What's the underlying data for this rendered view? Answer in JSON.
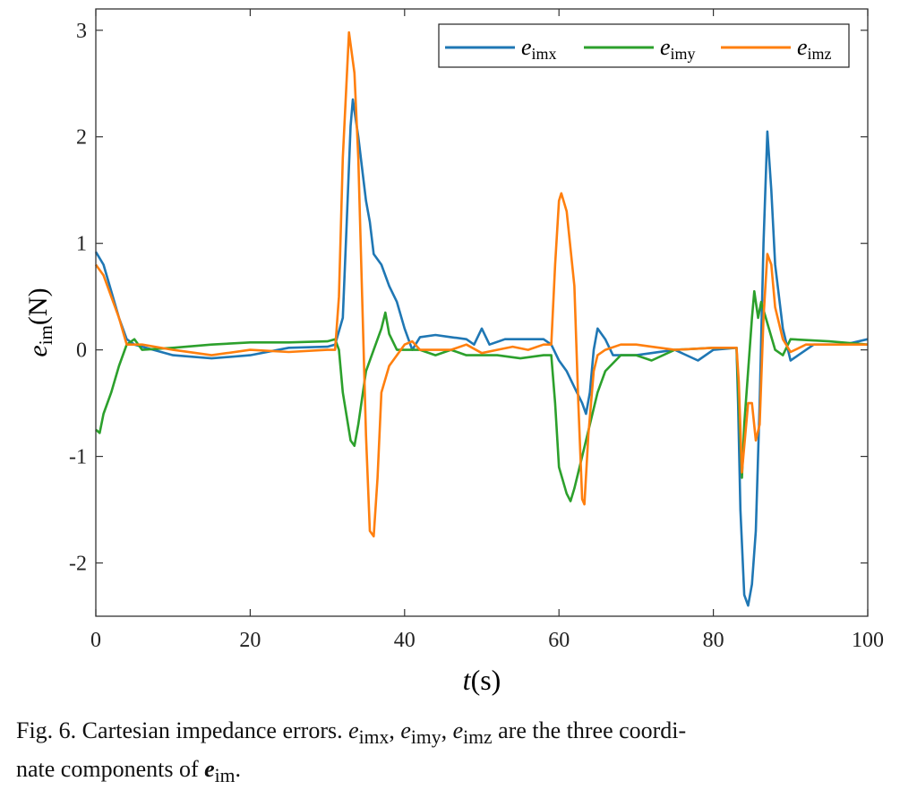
{
  "chart_data": {
    "type": "line",
    "title": "",
    "xlabel": "t(s)",
    "ylabel": "e_im(N)",
    "xlim": [
      0,
      100
    ],
    "ylim": [
      -2.5,
      3.2
    ],
    "xticks": [
      0,
      20,
      40,
      60,
      80,
      100
    ],
    "yticks": [
      -2,
      -1,
      0,
      1,
      2,
      3
    ],
    "ytick_labels": [
      "-2",
      "-1",
      "0",
      "1",
      "2",
      "3"
    ],
    "grid": false,
    "legend_position": "top-right",
    "series": [
      {
        "name": "e_imx",
        "color": "#1f77b4",
        "points": [
          [
            0,
            0.92
          ],
          [
            1,
            0.8
          ],
          [
            3,
            0.3
          ],
          [
            4,
            0.1
          ],
          [
            5,
            0.05
          ],
          [
            10,
            -0.05
          ],
          [
            15,
            -0.08
          ],
          [
            20,
            -0.05
          ],
          [
            25,
            0.02
          ],
          [
            30,
            0.03
          ],
          [
            31,
            0.05
          ],
          [
            32,
            0.3
          ],
          [
            32.5,
            1.2
          ],
          [
            33,
            2.1
          ],
          [
            33.3,
            2.35
          ],
          [
            34,
            2.0
          ],
          [
            35,
            1.4
          ],
          [
            35.5,
            1.2
          ],
          [
            36,
            0.9
          ],
          [
            37,
            0.8
          ],
          [
            38,
            0.6
          ],
          [
            39,
            0.45
          ],
          [
            40,
            0.2
          ],
          [
            41,
            0.0
          ],
          [
            42,
            0.12
          ],
          [
            44,
            0.14
          ],
          [
            46,
            0.12
          ],
          [
            48,
            0.1
          ],
          [
            49,
            0.05
          ],
          [
            50,
            0.2
          ],
          [
            51,
            0.05
          ],
          [
            53,
            0.1
          ],
          [
            55,
            0.1
          ],
          [
            57,
            0.1
          ],
          [
            58,
            0.1
          ],
          [
            59,
            0.05
          ],
          [
            60,
            -0.1
          ],
          [
            61,
            -0.2
          ],
          [
            62,
            -0.35
          ],
          [
            63,
            -0.5
          ],
          [
            63.5,
            -0.6
          ],
          [
            64,
            -0.4
          ],
          [
            64.5,
            0.0
          ],
          [
            65,
            0.2
          ],
          [
            66,
            0.1
          ],
          [
            67,
            -0.05
          ],
          [
            70,
            -0.05
          ],
          [
            75,
            0.0
          ],
          [
            78,
            -0.1
          ],
          [
            80,
            0.0
          ],
          [
            83,
            0.02
          ],
          [
            83.2,
            -0.5
          ],
          [
            83.5,
            -1.5
          ],
          [
            84,
            -2.3
          ],
          [
            84.5,
            -2.4
          ],
          [
            85,
            -2.2
          ],
          [
            85.5,
            -1.7
          ],
          [
            86,
            -0.5
          ],
          [
            86.5,
            1.0
          ],
          [
            87,
            2.05
          ],
          [
            87.5,
            1.5
          ],
          [
            88,
            0.8
          ],
          [
            89,
            0.2
          ],
          [
            90,
            -0.1
          ],
          [
            91,
            -0.05
          ],
          [
            93,
            0.05
          ],
          [
            95,
            0.05
          ],
          [
            97,
            0.05
          ],
          [
            100,
            0.1
          ]
        ]
      },
      {
        "name": "e_imy",
        "color": "#2ca02c",
        "points": [
          [
            0,
            -0.75
          ],
          [
            0.5,
            -0.78
          ],
          [
            1,
            -0.6
          ],
          [
            2,
            -0.4
          ],
          [
            3,
            -0.15
          ],
          [
            4,
            0.05
          ],
          [
            5,
            0.1
          ],
          [
            6,
            0.0
          ],
          [
            10,
            0.02
          ],
          [
            15,
            0.05
          ],
          [
            20,
            0.07
          ],
          [
            25,
            0.07
          ],
          [
            30,
            0.08
          ],
          [
            31,
            0.1
          ],
          [
            31.5,
            0.0
          ],
          [
            32,
            -0.4
          ],
          [
            33,
            -0.85
          ],
          [
            33.5,
            -0.9
          ],
          [
            34,
            -0.7
          ],
          [
            35,
            -0.2
          ],
          [
            36,
            0.0
          ],
          [
            37,
            0.2
          ],
          [
            37.5,
            0.35
          ],
          [
            38,
            0.15
          ],
          [
            39,
            0.0
          ],
          [
            40,
            0.0
          ],
          [
            42,
            0.0
          ],
          [
            44,
            -0.05
          ],
          [
            46,
            0.0
          ],
          [
            48,
            -0.05
          ],
          [
            50,
            -0.05
          ],
          [
            52,
            -0.05
          ],
          [
            55,
            -0.08
          ],
          [
            58,
            -0.05
          ],
          [
            59,
            -0.05
          ],
          [
            59.5,
            -0.5
          ],
          [
            60,
            -1.1
          ],
          [
            61,
            -1.35
          ],
          [
            61.5,
            -1.42
          ],
          [
            62,
            -1.3
          ],
          [
            63,
            -1.0
          ],
          [
            64,
            -0.7
          ],
          [
            65,
            -0.4
          ],
          [
            66,
            -0.2
          ],
          [
            68,
            -0.05
          ],
          [
            70,
            -0.05
          ],
          [
            72,
            -0.1
          ],
          [
            75,
            0.0
          ],
          [
            80,
            0.02
          ],
          [
            83,
            0.02
          ],
          [
            83.3,
            -0.5
          ],
          [
            83.7,
            -1.2
          ],
          [
            84,
            -0.7
          ],
          [
            85,
            0.3
          ],
          [
            85.3,
            0.55
          ],
          [
            85.8,
            0.3
          ],
          [
            86.2,
            0.45
          ],
          [
            87,
            0.25
          ],
          [
            88,
            0.0
          ],
          [
            89,
            -0.05
          ],
          [
            90,
            0.1
          ],
          [
            95,
            0.08
          ],
          [
            100,
            0.05
          ]
        ]
      },
      {
        "name": "e_imz",
        "color": "#ff7f0e",
        "points": [
          [
            0,
            0.8
          ],
          [
            1,
            0.7
          ],
          [
            3,
            0.3
          ],
          [
            4,
            0.05
          ],
          [
            6,
            0.05
          ],
          [
            10,
            0.0
          ],
          [
            15,
            -0.05
          ],
          [
            20,
            0.0
          ],
          [
            25,
            -0.02
          ],
          [
            30,
            0.0
          ],
          [
            31,
            0.0
          ],
          [
            31.5,
            0.5
          ],
          [
            32,
            1.8
          ],
          [
            32.8,
            2.98
          ],
          [
            33.5,
            2.6
          ],
          [
            34,
            1.8
          ],
          [
            34.5,
            0.5
          ],
          [
            35,
            -0.8
          ],
          [
            35.5,
            -1.7
          ],
          [
            36,
            -1.75
          ],
          [
            36.5,
            -1.2
          ],
          [
            37,
            -0.4
          ],
          [
            38,
            -0.15
          ],
          [
            39,
            -0.05
          ],
          [
            40,
            0.05
          ],
          [
            41,
            0.08
          ],
          [
            42,
            0.0
          ],
          [
            44,
            0.0
          ],
          [
            46,
            0.0
          ],
          [
            48,
            0.05
          ],
          [
            50,
            -0.03
          ],
          [
            52,
            0.0
          ],
          [
            54,
            0.03
          ],
          [
            56,
            0.0
          ],
          [
            58,
            0.05
          ],
          [
            59,
            0.05
          ],
          [
            59.5,
            0.8
          ],
          [
            60,
            1.4
          ],
          [
            60.3,
            1.47
          ],
          [
            61,
            1.3
          ],
          [
            62,
            0.6
          ],
          [
            62.5,
            -0.5
          ],
          [
            63,
            -1.4
          ],
          [
            63.3,
            -1.45
          ],
          [
            63.8,
            -0.8
          ],
          [
            64.5,
            -0.2
          ],
          [
            65,
            -0.05
          ],
          [
            66,
            0.0
          ],
          [
            68,
            0.05
          ],
          [
            70,
            0.05
          ],
          [
            72,
            0.03
          ],
          [
            75,
            0.0
          ],
          [
            80,
            0.02
          ],
          [
            83,
            0.02
          ],
          [
            83.3,
            -0.3
          ],
          [
            83.7,
            -1.15
          ],
          [
            84.5,
            -0.5
          ],
          [
            85,
            -0.5
          ],
          [
            85.5,
            -0.85
          ],
          [
            86,
            -0.7
          ],
          [
            86.5,
            0.3
          ],
          [
            87,
            0.9
          ],
          [
            87.5,
            0.8
          ],
          [
            88,
            0.4
          ],
          [
            89,
            0.1
          ],
          [
            90,
            -0.02
          ],
          [
            92,
            0.05
          ],
          [
            95,
            0.05
          ],
          [
            100,
            0.05
          ]
        ]
      }
    ]
  },
  "legend": {
    "labels": [
      {
        "base": "e",
        "sub": "imx"
      },
      {
        "base": "e",
        "sub": "imy"
      },
      {
        "base": "e",
        "sub": "imz"
      }
    ]
  },
  "axis_labels": {
    "y_base": "e",
    "y_sub": "im",
    "y_unit": "(N)",
    "x_var": "t",
    "x_unit": "(s)"
  },
  "caption": {
    "prefix": "Fig. 6. Cartesian impedance errors. ",
    "e": "e",
    "sub_x": "imx",
    "sub_y": "imy",
    "sub_z": "imz",
    "comma": ", ",
    "middle": " are the three coordi-",
    "line2_prefix": "nate components of ",
    "sub_im": "im",
    "end": "."
  }
}
